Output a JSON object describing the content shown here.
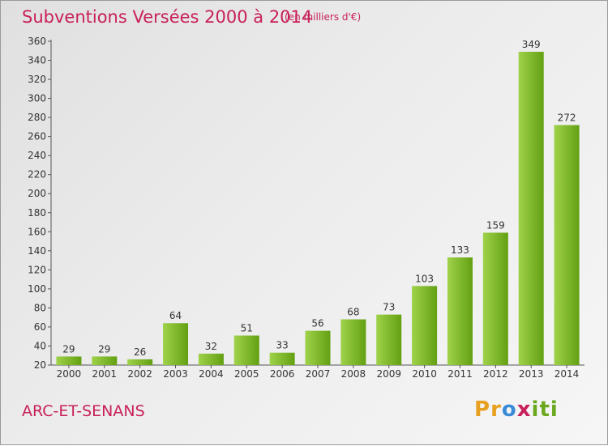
{
  "header": {
    "title": "Subventions Versées 2000 à 2014",
    "subtitle": "(en milliers d'€)"
  },
  "footer": {
    "commune": "ARC-ET-SENANS",
    "logo_text": "Proxiti",
    "logo_letters": [
      "P",
      "r",
      "o",
      "x",
      "i",
      "t",
      "i"
    ],
    "logo_colors": [
      "#e8a020",
      "#e8a020",
      "#3a8ad8",
      "#c8205a",
      "#6aa81e",
      "#6aa81e",
      "#6aa81e"
    ]
  },
  "colors": {
    "bar_light": "#9fd24a",
    "bar_dark": "#63a012",
    "axis": "#555555",
    "accent": "#c8205a"
  },
  "chart_data": {
    "type": "bar",
    "categories": [
      "2000",
      "2001",
      "2002",
      "2003",
      "2004",
      "2005",
      "2006",
      "2007",
      "2008",
      "2009",
      "2010",
      "2011",
      "2012",
      "2013",
      "2014"
    ],
    "values": [
      29,
      29,
      26,
      64,
      32,
      51,
      33,
      56,
      68,
      73,
      103,
      133,
      159,
      349,
      272
    ],
    "ylim": [
      20,
      360
    ],
    "yticks": [
      20,
      40,
      60,
      80,
      100,
      120,
      140,
      160,
      180,
      200,
      220,
      240,
      260,
      280,
      300,
      320,
      340,
      360
    ],
    "grid": false,
    "data_labels": true
  }
}
